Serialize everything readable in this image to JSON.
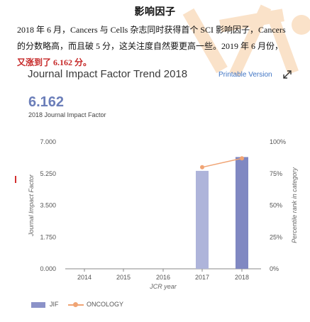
{
  "doc": {
    "title": "影响因子",
    "line1": "2018 年 6 月，Cancers 与 Cells 杂志同时获得首个 SCI 影响因子，Cancers",
    "line2": "的分数略高，而且破 5 分，这关注度自然要更高一些。2019 年 6 月份，",
    "line3": "又涨到了 6.162 分。"
  },
  "card": {
    "title": "Journal Impact Factor Trend 2018",
    "printable_label": "Printable Version",
    "expand_icon": "expand-arrows-icon",
    "jif_value": "6.162",
    "jif_caption": "2018 Journal Impact Factor"
  },
  "chart_data": {
    "type": "bar",
    "xlabel": "JCR year",
    "ylabel": "Journal Impact Factor",
    "y2label": "Percentile rank in category",
    "categories": [
      "2014",
      "2015",
      "2016",
      "2017",
      "2018"
    ],
    "ylim": [
      0,
      7
    ],
    "y_ticks": [
      "0.000",
      "1.750",
      "3.500",
      "5.250",
      "7.000"
    ],
    "y2lim": [
      0,
      100
    ],
    "y2_ticks": [
      "0%",
      "25%",
      "50%",
      "75%",
      "100%"
    ],
    "series": [
      {
        "name": "JIF",
        "kind": "bar",
        "axis": "left",
        "values": [
          null,
          null,
          null,
          5.4,
          6.162
        ],
        "colors": [
          "#aeb4da",
          "#8088c2"
        ]
      },
      {
        "name": "ONCOLOGY",
        "kind": "line",
        "axis": "right",
        "values": [
          null,
          null,
          null,
          80,
          87
        ],
        "color": "#f0a474"
      }
    ],
    "grid": false,
    "legend_position": "bottom-left"
  },
  "colors": {
    "accent": "#6b7eb9",
    "link": "#3f74c4",
    "highlight": "#c62828"
  }
}
